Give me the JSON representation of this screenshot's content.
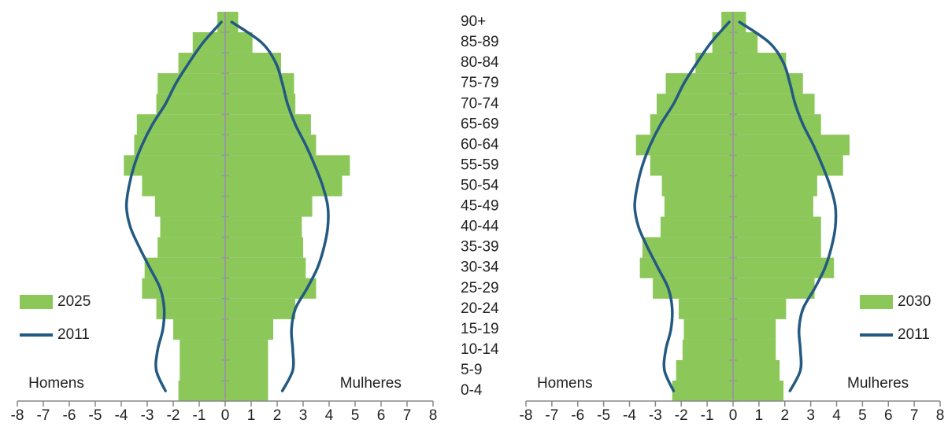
{
  "chart_data": [
    {
      "type": "pyramid",
      "categories": [
        "90+",
        "85-89",
        "80-84",
        "75-79",
        "70-74",
        "65-69",
        "60-64",
        "55-59",
        "50-54",
        "45-49",
        "40-44",
        "35-39",
        "30-34",
        "25-29",
        "20-24",
        "15-19",
        "10-14",
        "5-9",
        "0-4"
      ],
      "annotations": [
        "Homens",
        "Mulheres"
      ],
      "legend": "left",
      "xlim": [
        -8,
        8
      ],
      "xticks": [
        -8,
        -7,
        -6,
        -5,
        -4,
        -3,
        -2,
        -1,
        0,
        1,
        2,
        3,
        4,
        5,
        6,
        7,
        8
      ],
      "series": [
        {
          "name": "2025",
          "color": "#8cc75a",
          "style": "bar",
          "male": [
            -0.3,
            -1.25,
            -1.8,
            -2.6,
            -2.65,
            -3.4,
            -3.5,
            -3.9,
            -3.2,
            -2.7,
            -2.5,
            -2.6,
            -3.1,
            -3.2,
            -2.65,
            -2.0,
            -1.75,
            -1.75,
            -1.8
          ],
          "female": [
            0.5,
            1.05,
            2.15,
            2.65,
            2.7,
            3.3,
            3.5,
            4.8,
            4.5,
            3.35,
            2.95,
            3.0,
            3.1,
            3.5,
            2.7,
            1.85,
            1.65,
            1.65,
            1.65
          ]
        },
        {
          "name": "2011",
          "color": "#245a82",
          "style": "line",
          "male": [
            -0.15,
            -0.85,
            -1.4,
            -1.9,
            -2.3,
            -2.8,
            -3.2,
            -3.5,
            -3.7,
            -3.8,
            -3.65,
            -3.3,
            -2.9,
            -2.5,
            -2.35,
            -2.4,
            -2.6,
            -2.65,
            -2.3
          ],
          "female": [
            0.25,
            1.4,
            1.95,
            2.2,
            2.4,
            2.7,
            3.1,
            3.45,
            3.75,
            3.95,
            3.95,
            3.8,
            3.55,
            3.15,
            2.7,
            2.55,
            2.6,
            2.6,
            2.2
          ]
        }
      ]
    },
    {
      "type": "pyramid",
      "annotations": [
        "Homens",
        "Mulheres"
      ],
      "legend": "right",
      "xlim": [
        -8,
        8
      ],
      "xticks": [
        -8,
        -7,
        -6,
        -5,
        -4,
        -3,
        -2,
        -1,
        0,
        1,
        2,
        3,
        4,
        5,
        6,
        7,
        8
      ],
      "series": [
        {
          "name": "2030",
          "color": "#8cc75a",
          "style": "bar",
          "male": [
            -0.45,
            -0.8,
            -1.45,
            -2.6,
            -2.95,
            -3.2,
            -3.75,
            -3.2,
            -2.75,
            -2.65,
            -2.8,
            -3.5,
            -3.6,
            -3.1,
            -2.1,
            -1.9,
            -1.95,
            -2.2,
            -2.35
          ],
          "female": [
            0.5,
            0.95,
            2.05,
            2.7,
            3.15,
            3.4,
            4.5,
            4.25,
            3.25,
            3.1,
            3.4,
            3.4,
            3.9,
            3.15,
            2.05,
            1.65,
            1.65,
            1.8,
            1.95
          ]
        },
        {
          "name": "2011",
          "color": "#245a82",
          "style": "line",
          "male": [
            -0.15,
            -0.85,
            -1.4,
            -1.9,
            -2.3,
            -2.8,
            -3.2,
            -3.5,
            -3.7,
            -3.8,
            -3.65,
            -3.3,
            -2.9,
            -2.5,
            -2.35,
            -2.4,
            -2.6,
            -2.65,
            -2.3
          ],
          "female": [
            0.25,
            1.4,
            1.95,
            2.2,
            2.4,
            2.7,
            3.1,
            3.45,
            3.75,
            3.95,
            3.95,
            3.8,
            3.55,
            3.15,
            2.7,
            2.55,
            2.6,
            2.6,
            2.2
          ]
        }
      ]
    }
  ]
}
